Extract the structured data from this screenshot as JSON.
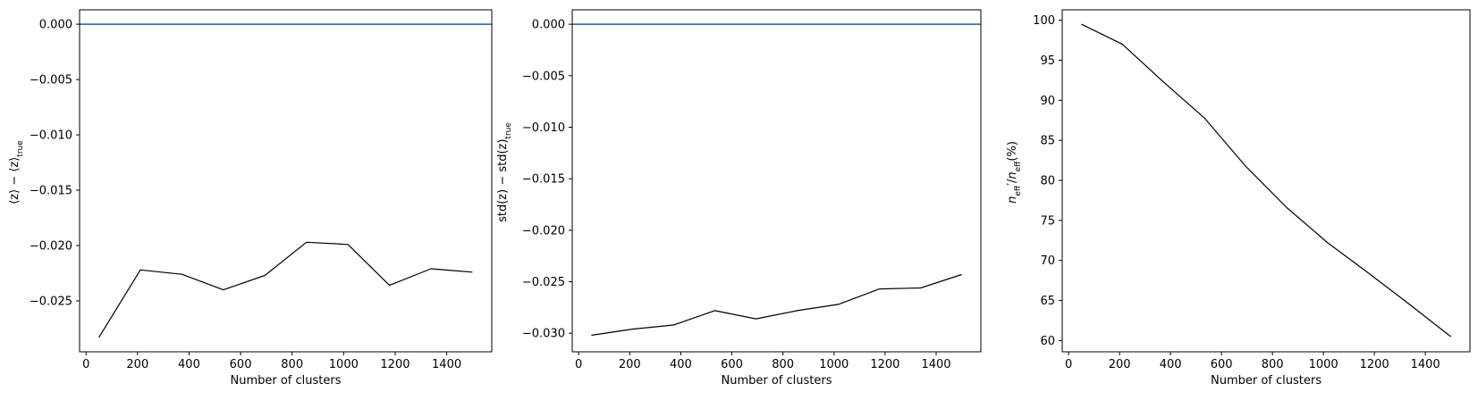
{
  "colors": {
    "series": "#000000",
    "reference": "#1f5fa6",
    "axes": "#000000",
    "background": "#ffffff"
  },
  "chart_data": [
    {
      "type": "line",
      "xlabel": "Number of clusters",
      "ylabel": "⟨z⟩ − ⟨z⟩",
      "ylabel_sub": "true",
      "xlim": [
        -25,
        1575
      ],
      "ylim": [
        -0.0296,
        0.0013
      ],
      "xticks": [
        0,
        200,
        400,
        600,
        800,
        1000,
        1200,
        1400
      ],
      "xtick_labels": [
        "0",
        "200",
        "400",
        "600",
        "800",
        "1000",
        "1200",
        "1400"
      ],
      "yticks": [
        0.0,
        -0.005,
        -0.01,
        -0.015,
        -0.02,
        -0.025
      ],
      "ytick_labels": [
        "0.000",
        "−0.005",
        "−0.010",
        "−0.015",
        "−0.020",
        "−0.025"
      ],
      "reference_line": {
        "y": 0.0
      },
      "series": [
        {
          "x": [
            50,
            211,
            372,
            533,
            694,
            856,
            1017,
            1178,
            1339,
            1500
          ],
          "y": [
            -0.0283,
            -0.0222,
            -0.0226,
            -0.024,
            -0.0227,
            -0.0197,
            -0.0199,
            -0.0236,
            -0.0221,
            -0.0224
          ]
        }
      ]
    },
    {
      "type": "line",
      "xlabel": "Number of clusters",
      "ylabel": "std(z) − std(z)",
      "ylabel_sub": "true",
      "xlim": [
        -25,
        1575
      ],
      "ylim": [
        -0.0318,
        0.0014
      ],
      "xticks": [
        0,
        200,
        400,
        600,
        800,
        1000,
        1200,
        1400
      ],
      "xtick_labels": [
        "0",
        "200",
        "400",
        "600",
        "800",
        "1000",
        "1200",
        "1400"
      ],
      "yticks": [
        0.0,
        -0.005,
        -0.01,
        -0.015,
        -0.02,
        -0.025,
        -0.03
      ],
      "ytick_labels": [
        "0.000",
        "−0.005",
        "−0.010",
        "−0.015",
        "−0.020",
        "−0.025",
        "−0.030"
      ],
      "reference_line": {
        "y": 0.0
      },
      "series": [
        {
          "x": [
            50,
            211,
            372,
            533,
            694,
            856,
            1017,
            1178,
            1339,
            1500
          ],
          "y": [
            -0.0302,
            -0.0296,
            -0.0292,
            -0.0278,
            -0.0286,
            -0.0278,
            -0.0272,
            -0.0257,
            -0.0256,
            -0.0243
          ]
        }
      ]
    },
    {
      "type": "line",
      "xlabel": "Number of clusters",
      "ylabel_html": "n′eff/neff(%)",
      "xlim": [
        -25,
        1575
      ],
      "ylim": [
        58.6,
        101.3
      ],
      "xticks": [
        0,
        200,
        400,
        600,
        800,
        1000,
        1200,
        1400
      ],
      "xtick_labels": [
        "0",
        "200",
        "400",
        "600",
        "800",
        "1000",
        "1200",
        "1400"
      ],
      "yticks": [
        60,
        65,
        70,
        75,
        80,
        85,
        90,
        95,
        100
      ],
      "ytick_labels": [
        "60",
        "65",
        "70",
        "75",
        "80",
        "85",
        "90",
        "95",
        "100"
      ],
      "series": [
        {
          "x": [
            50,
            211,
            372,
            533,
            694,
            856,
            1017,
            1178,
            1339,
            1500
          ],
          "y": [
            99.5,
            97.0,
            92.3,
            87.8,
            81.8,
            76.6,
            72.2,
            68.4,
            64.5,
            60.5
          ]
        }
      ]
    }
  ]
}
